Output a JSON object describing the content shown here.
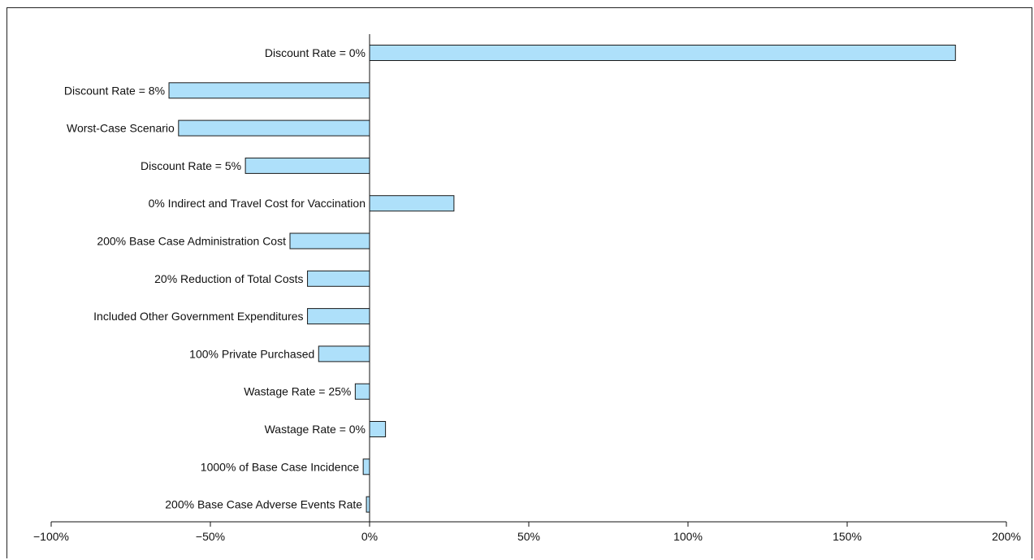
{
  "chart_data": {
    "type": "bar",
    "orientation": "horizontal",
    "title": "",
    "xlabel": "",
    "ylabel": "",
    "categories": [
      "Discount Rate = 0%",
      "Discount Rate = 8%",
      "Worst-Case Scenario",
      "Discount Rate = 5%",
      "0% Indirect and Travel Cost for Vaccination",
      "200% Base Case Administration Cost",
      "20% Reduction of Total Costs",
      "Included Other Government Expenditures",
      "100% Private Purchased",
      "Wastage Rate = 25%",
      "Wastage Rate = 0%",
      "1000% of Base Case Incidence",
      "200% Base Case Adverse Events Rate"
    ],
    "values": [
      184,
      -63,
      -60,
      -39,
      26.5,
      -25,
      -19.5,
      -19.5,
      -16,
      -4.5,
      5,
      -2,
      -1
    ],
    "xlim": [
      -100,
      200
    ],
    "xticks": [
      -100,
      -50,
      0,
      50,
      100,
      150,
      200
    ],
    "xtick_labels": [
      "−100%",
      "−50%",
      "0%",
      "50%",
      "100%",
      "150%",
      "200%"
    ],
    "grid": false,
    "legend": "none",
    "bar_color": "#aee0fa",
    "bar_edge_color": "#1a1a1a"
  }
}
